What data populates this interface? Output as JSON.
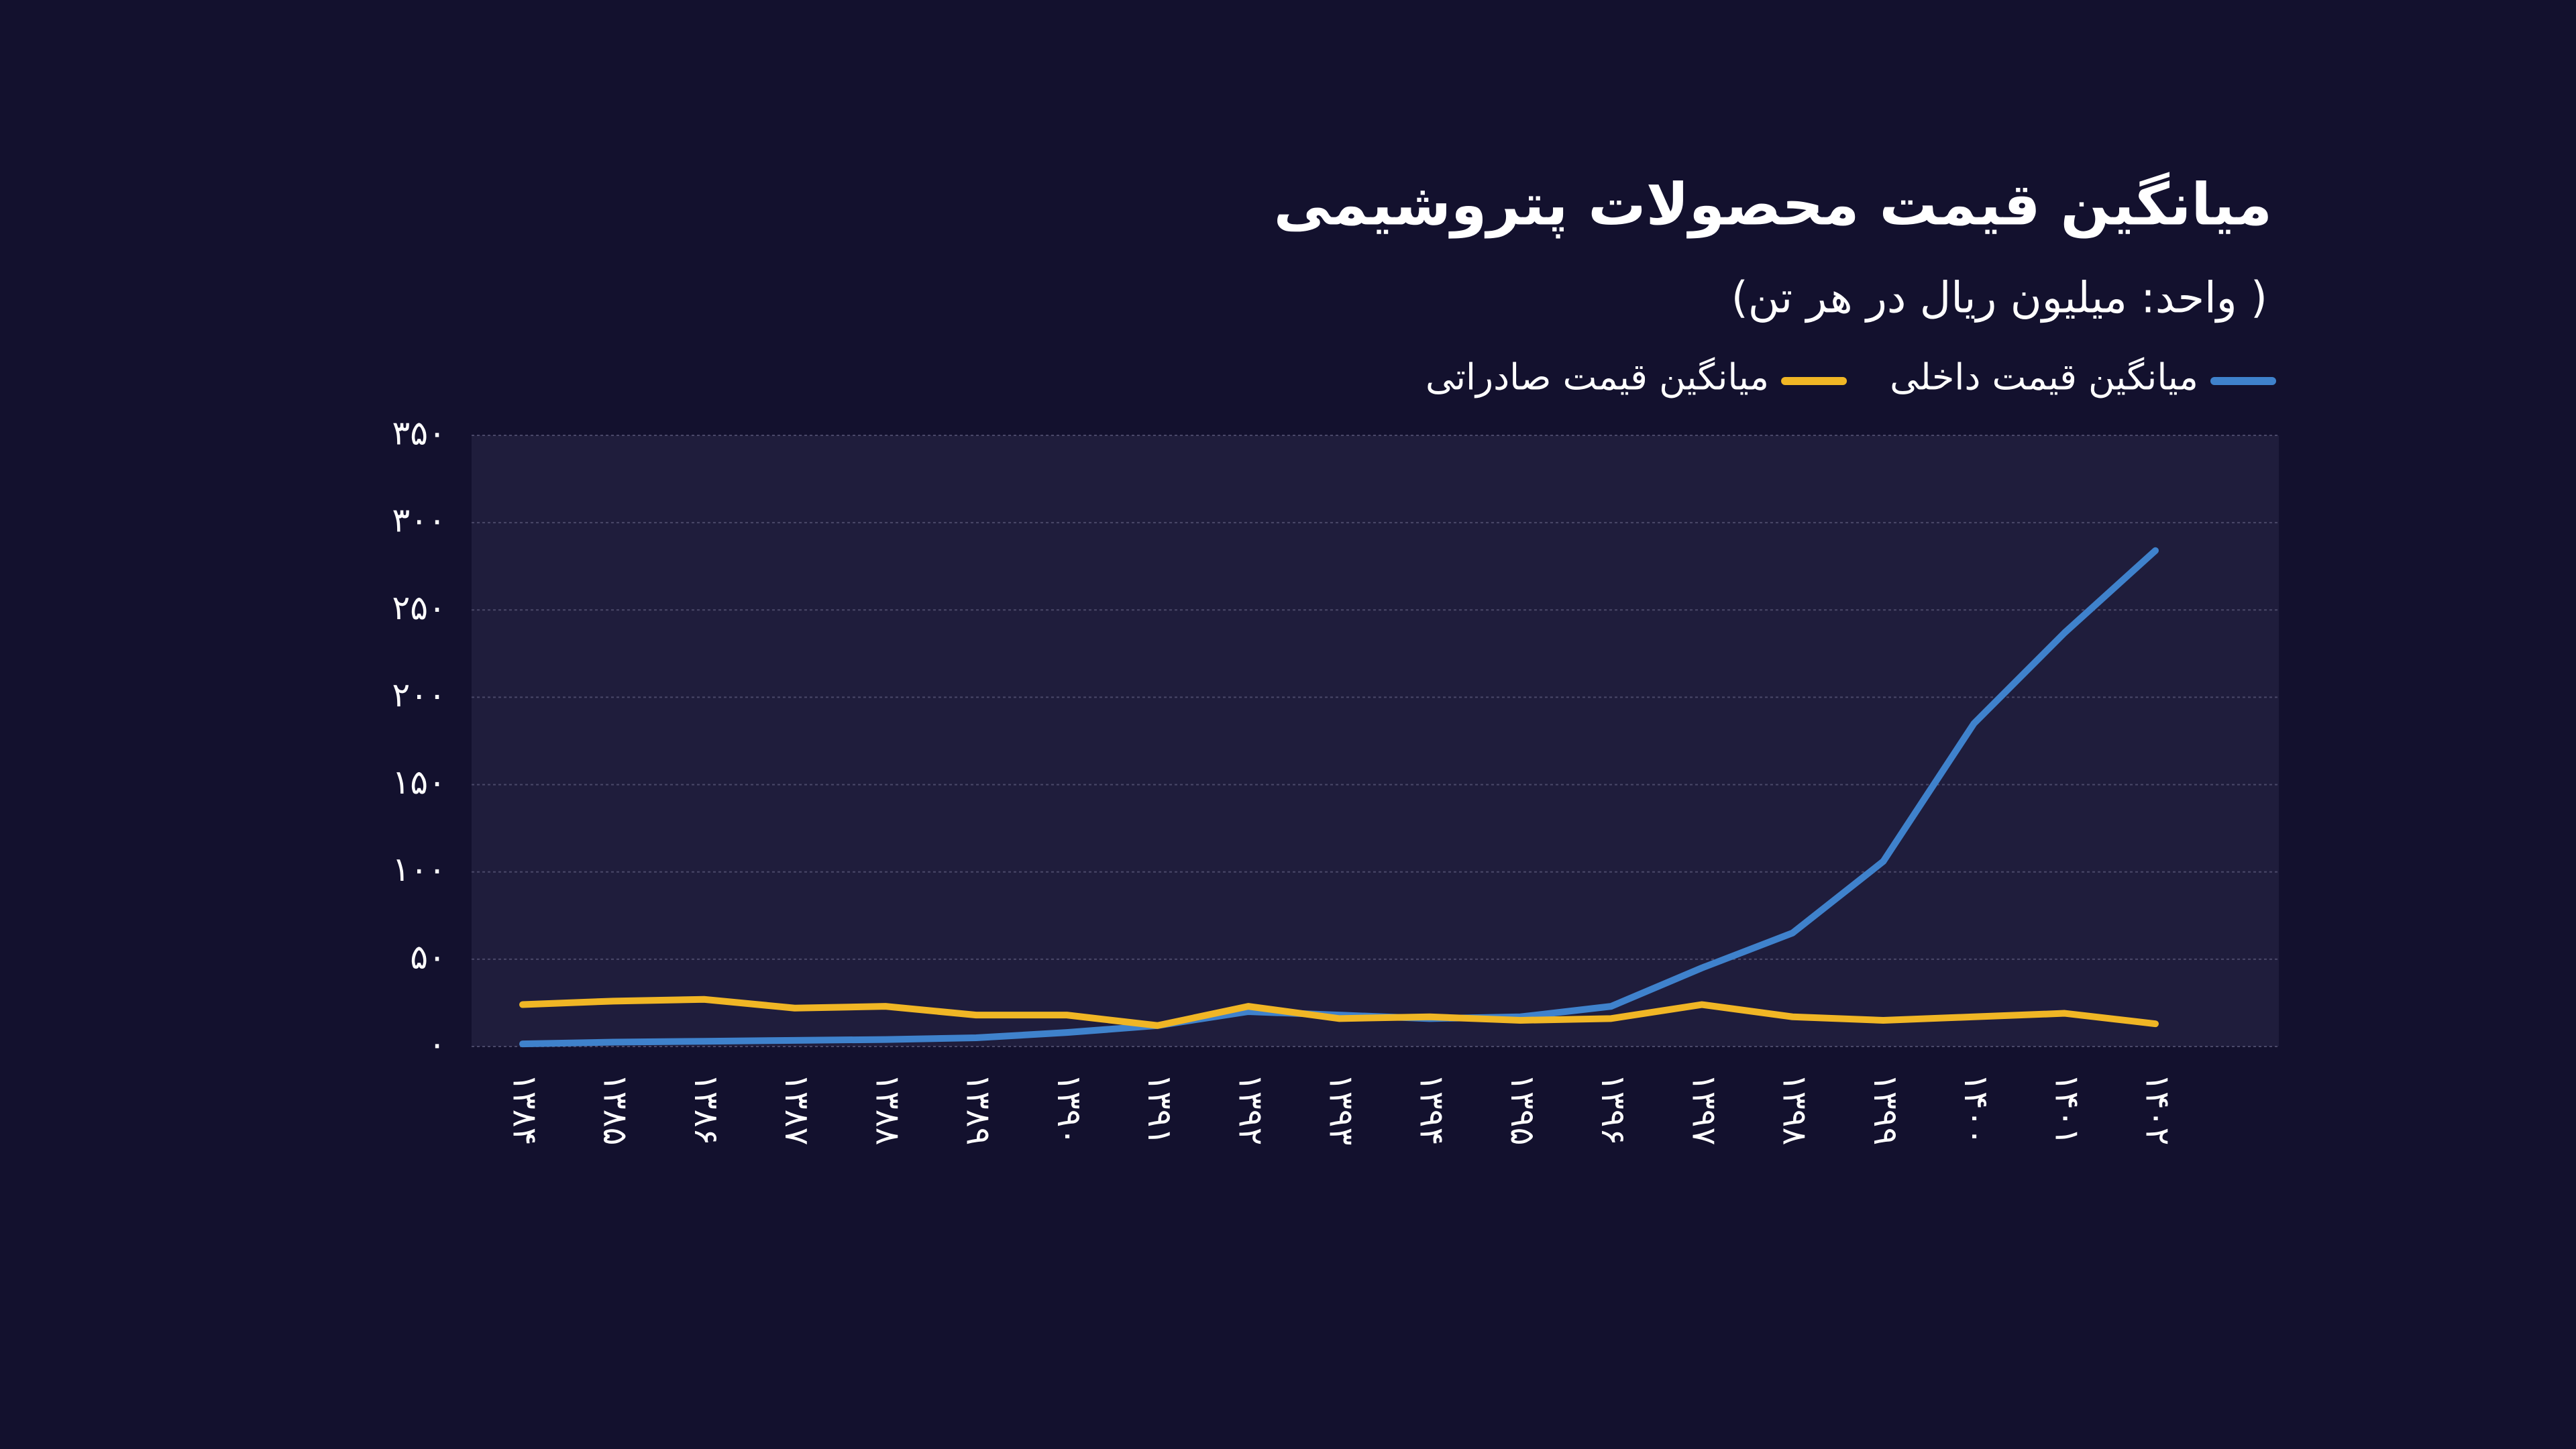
{
  "chart_data": {
    "type": "line",
    "title": "میانگین قیمت محصولات پتروشیمی",
    "subtitle": "( واحد: میلیون ریال در هر تن)",
    "categories": [
      "۱۳۸۴",
      "۱۳۸۵",
      "۱۳۸۶",
      "۱۳۸۷",
      "۱۳۸۸",
      "۱۳۸۹",
      "۱۳۹۰",
      "۱۳۹۱",
      "۱۳۹۲",
      "۱۳۹۳",
      "۱۳۹۴",
      "۱۳۹۵",
      "۱۳۹۶",
      "۱۳۹۷",
      "۱۳۹۸",
      "۱۳۹۹",
      "۱۴۰۰",
      "۱۴۰۱",
      "۱۴۰۲"
    ],
    "series": [
      {
        "name": "میانگین قیمت داخلی",
        "color": "#3f82cc",
        "values": [
          1.5,
          2.5,
          3,
          3.5,
          4,
          5,
          8,
          12,
          20,
          18,
          16,
          17,
          23,
          45,
          65,
          106,
          185,
          237,
          284
        ]
      },
      {
        "name": "میانگین قیمت صادراتی",
        "color": "#f0b625",
        "values": [
          24,
          26,
          27,
          22,
          23,
          18,
          18,
          12,
          23,
          16,
          17,
          15,
          16,
          24,
          17,
          15,
          17,
          19,
          13
        ]
      }
    ],
    "ylim": [
      0,
      350
    ],
    "yticks": [
      {
        "value": 0,
        "label": "۰"
      },
      {
        "value": 50,
        "label": "۵۰"
      },
      {
        "value": 100,
        "label": "۱۰۰"
      },
      {
        "value": 150,
        "label": "۱۵۰"
      },
      {
        "value": 200,
        "label": "۲۰۰"
      },
      {
        "value": 250,
        "label": "۲۵۰"
      },
      {
        "value": 300,
        "label": "۳۰۰"
      },
      {
        "value": 350,
        "label": "۳۵۰"
      }
    ],
    "grid": true
  }
}
